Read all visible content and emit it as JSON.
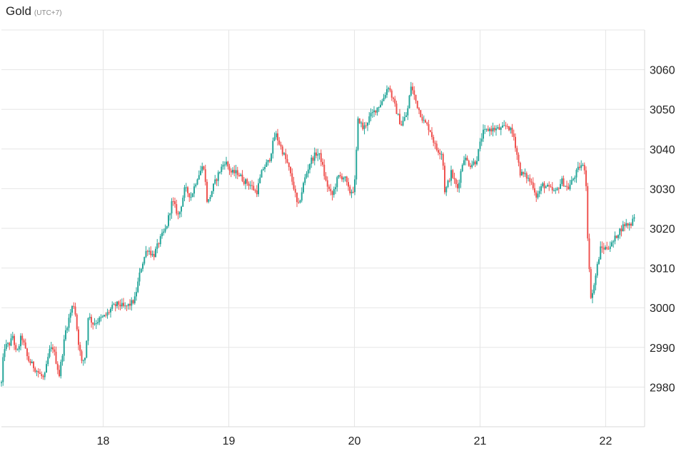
{
  "header": {
    "title": "Gold",
    "subtitle": "(UTC+7)"
  },
  "colors": {
    "up": "#26a69a",
    "down": "#ef5350",
    "grid": "#e6e6e6",
    "axis_border": "#d9d9d9"
  },
  "chart_data": {
    "type": "candlestick",
    "title": "Gold",
    "subtitle": "(UTC+7)",
    "xlabel": "",
    "ylabel": "",
    "y_axis_position": "right",
    "grid": true,
    "x_ticks": [
      {
        "label": "18",
        "value": 18
      },
      {
        "label": "19",
        "value": 19
      },
      {
        "label": "20",
        "value": 20
      },
      {
        "label": "21",
        "value": 21
      },
      {
        "label": "22",
        "value": 22
      }
    ],
    "y_ticks": [
      2980,
      2990,
      3000,
      3010,
      3020,
      3030,
      3040,
      3050,
      3060
    ],
    "xlim": [
      17.19,
      22.31
    ],
    "ylim": [
      2970,
      3070
    ],
    "price_path": [
      [
        17.19,
        2981
      ],
      [
        17.21,
        2990
      ],
      [
        17.26,
        2991
      ],
      [
        17.28,
        2993
      ],
      [
        17.31,
        2988
      ],
      [
        17.35,
        2993
      ],
      [
        17.4,
        2987
      ],
      [
        17.45,
        2985
      ],
      [
        17.5,
        2983
      ],
      [
        17.53,
        2982
      ],
      [
        17.57,
        2989
      ],
      [
        17.6,
        2990
      ],
      [
        17.65,
        2983
      ],
      [
        17.7,
        2994
      ],
      [
        17.75,
        3000
      ],
      [
        17.77,
        3001
      ],
      [
        17.8,
        2992
      ],
      [
        17.83,
        2986
      ],
      [
        17.86,
        2988
      ],
      [
        17.88,
        2998
      ],
      [
        17.92,
        2996
      ],
      [
        17.97,
        2997
      ],
      [
        18.02,
        2998
      ],
      [
        18.07,
        3000
      ],
      [
        18.12,
        3001
      ],
      [
        18.17,
        3000
      ],
      [
        18.22,
        3001
      ],
      [
        18.25,
        3002
      ],
      [
        18.3,
        3010
      ],
      [
        18.35,
        3015
      ],
      [
        18.4,
        3013
      ],
      [
        18.45,
        3017
      ],
      [
        18.5,
        3020
      ],
      [
        18.55,
        3027
      ],
      [
        18.6,
        3023
      ],
      [
        18.65,
        3030
      ],
      [
        18.7,
        3028
      ],
      [
        18.75,
        3033
      ],
      [
        18.8,
        3036
      ],
      [
        18.83,
        3026
      ],
      [
        18.87,
        3030
      ],
      [
        18.92,
        3034
      ],
      [
        18.97,
        3037
      ],
      [
        19.02,
        3034
      ],
      [
        19.07,
        3034
      ],
      [
        19.12,
        3032
      ],
      [
        19.17,
        3031
      ],
      [
        19.22,
        3029
      ],
      [
        19.27,
        3035
      ],
      [
        19.32,
        3037
      ],
      [
        19.37,
        3044
      ],
      [
        19.42,
        3040
      ],
      [
        19.47,
        3036
      ],
      [
        19.52,
        3030
      ],
      [
        19.55,
        3025
      ],
      [
        19.6,
        3032
      ],
      [
        19.65,
        3037
      ],
      [
        19.7,
        3039
      ],
      [
        19.73,
        3038
      ],
      [
        19.77,
        3032
      ],
      [
        19.82,
        3028
      ],
      [
        19.87,
        3033
      ],
      [
        19.92,
        3033
      ],
      [
        19.96,
        3029
      ],
      [
        20.0,
        3030
      ],
      [
        20.03,
        3048
      ],
      [
        20.07,
        3045
      ],
      [
        20.12,
        3048
      ],
      [
        20.17,
        3050
      ],
      [
        20.22,
        3052
      ],
      [
        20.27,
        3056
      ],
      [
        20.32,
        3051
      ],
      [
        20.37,
        3046
      ],
      [
        20.42,
        3049
      ],
      [
        20.45,
        3056
      ],
      [
        20.5,
        3051
      ],
      [
        20.55,
        3047
      ],
      [
        20.6,
        3045
      ],
      [
        20.65,
        3040
      ],
      [
        20.7,
        3039
      ],
      [
        20.72,
        3029
      ],
      [
        20.77,
        3034
      ],
      [
        20.82,
        3030
      ],
      [
        20.87,
        3038
      ],
      [
        20.92,
        3036
      ],
      [
        20.97,
        3037
      ],
      [
        21.02,
        3044
      ],
      [
        21.07,
        3045
      ],
      [
        21.12,
        3045
      ],
      [
        21.17,
        3045
      ],
      [
        21.22,
        3046
      ],
      [
        21.27,
        3043
      ],
      [
        21.32,
        3034
      ],
      [
        21.37,
        3033
      ],
      [
        21.42,
        3031
      ],
      [
        21.45,
        3028
      ],
      [
        21.5,
        3031
      ],
      [
        21.55,
        3030
      ],
      [
        21.6,
        3029
      ],
      [
        21.65,
        3032
      ],
      [
        21.7,
        3030
      ],
      [
        21.75,
        3033
      ],
      [
        21.8,
        3036
      ],
      [
        21.84,
        3035
      ],
      [
        21.86,
        3015
      ],
      [
        21.88,
        3003
      ],
      [
        21.9,
        3004
      ],
      [
        21.93,
        3010
      ],
      [
        21.96,
        3015
      ],
      [
        22.0,
        3015
      ],
      [
        22.05,
        3016
      ],
      [
        22.1,
        3019
      ],
      [
        22.15,
        3021
      ],
      [
        22.2,
        3021
      ],
      [
        22.22,
        3023
      ],
      [
        22.24,
        3024
      ]
    ]
  }
}
